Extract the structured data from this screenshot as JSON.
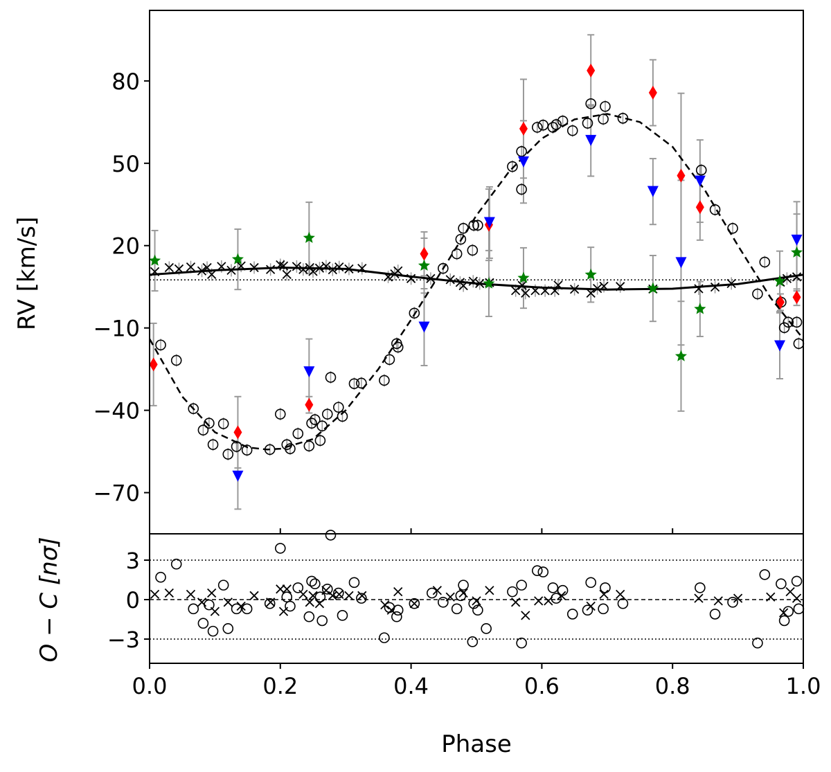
{
  "chart_data": {
    "type": "scatter",
    "title": "",
    "xlabel": "Phase",
    "ylabel_top": "RV [km/s]",
    "ylabel_bottom": "O − C [nσ]",
    "xlim": [
      0.0,
      1.0
    ],
    "ylim_top": [
      -85,
      105.7
    ],
    "ylim_bottom": [
      -4.84,
      5.0
    ],
    "xticks": [
      "0.0",
      "0.2",
      "0.4",
      "0.6",
      "0.8",
      "1.0"
    ],
    "xtick_values": [
      0.0,
      0.2,
      0.4,
      0.6,
      0.8,
      1.0
    ],
    "yticks_top": [
      "80",
      "50",
      "20",
      "−10",
      "−40",
      "−70"
    ],
    "ytick_values_top": [
      80,
      50,
      20,
      -10,
      -40,
      -70
    ],
    "yticks_bottom": [
      "3",
      "0",
      "−3"
    ],
    "ytick_values_bottom": [
      3,
      0,
      -3
    ],
    "systemic_velocity": 7.5,
    "residual_limits": [
      3,
      -3
    ],
    "colors": {
      "primary": "#000000",
      "secondary": "#000000",
      "red": "#ff0000",
      "blue": "#0000ff",
      "green": "#008000",
      "errorbar": "#999999"
    },
    "model_primary": [
      [
        0,
        -14
      ],
      [
        0.05,
        -35
      ],
      [
        0.1,
        -48
      ],
      [
        0.15,
        -53.5
      ],
      [
        0.18,
        -54.3
      ],
      [
        0.2,
        -54
      ],
      [
        0.25,
        -50.5
      ],
      [
        0.3,
        -40
      ],
      [
        0.35,
        -25
      ],
      [
        0.4,
        -7
      ],
      [
        0.45,
        12
      ],
      [
        0.5,
        31
      ],
      [
        0.55,
        47
      ],
      [
        0.6,
        59
      ],
      [
        0.65,
        66
      ],
      [
        0.7,
        68
      ],
      [
        0.75,
        65
      ],
      [
        0.8,
        56
      ],
      [
        0.85,
        40
      ],
      [
        0.9,
        20
      ],
      [
        0.95,
        1
      ],
      [
        1.0,
        -14
      ]
    ],
    "model_secondary": [
      [
        0,
        9.4
      ],
      [
        0.1,
        11
      ],
      [
        0.2,
        12
      ],
      [
        0.3,
        11.5
      ],
      [
        0.4,
        8.7
      ],
      [
        0.5,
        6.2
      ],
      [
        0.6,
        4.7
      ],
      [
        0.7,
        4
      ],
      [
        0.8,
        4.3
      ],
      [
        0.9,
        6
      ],
      [
        1.0,
        9.4
      ]
    ],
    "primary_points": [
      [
        0.017,
        -16.2
      ],
      [
        0.041,
        -21.8
      ],
      [
        0.067,
        -39.4
      ],
      [
        0.082,
        -47.2
      ],
      [
        0.091,
        -44.7
      ],
      [
        0.097,
        -52.5
      ],
      [
        0.113,
        -44.9
      ],
      [
        0.12,
        -56
      ],
      [
        0.133,
        -53.2
      ],
      [
        0.149,
        -54.5
      ],
      [
        0.184,
        -54.3
      ],
      [
        0.2,
        -41.4
      ],
      [
        0.21,
        -52.5
      ],
      [
        0.215,
        -54
      ],
      [
        0.227,
        -48.5
      ],
      [
        0.244,
        -53
      ],
      [
        0.248,
        -44.7
      ],
      [
        0.253,
        -43.4
      ],
      [
        0.261,
        -51
      ],
      [
        0.264,
        -45.7
      ],
      [
        0.272,
        -41.4
      ],
      [
        0.277,
        -28
      ],
      [
        0.289,
        -38.9
      ],
      [
        0.295,
        -42.2
      ],
      [
        0.313,
        -30.3
      ],
      [
        0.324,
        -30.1
      ],
      [
        0.359,
        -29.1
      ],
      [
        0.367,
        -21.5
      ],
      [
        0.378,
        -15.7
      ],
      [
        0.38,
        -17
      ],
      [
        0.405,
        -4.6
      ],
      [
        0.449,
        11.7
      ],
      [
        0.47,
        17
      ],
      [
        0.476,
        22.3
      ],
      [
        0.48,
        26.3
      ],
      [
        0.494,
        18.3
      ],
      [
        0.496,
        27.4
      ],
      [
        0.502,
        27.4
      ],
      [
        0.555,
        48.8
      ],
      [
        0.569,
        40.5
      ],
      [
        0.569,
        54.3
      ],
      [
        0.593,
        63.1
      ],
      [
        0.602,
        63.9
      ],
      [
        0.617,
        63.1
      ],
      [
        0.622,
        64.1
      ],
      [
        0.632,
        65.4
      ],
      [
        0.647,
        61.9
      ],
      [
        0.67,
        64.6
      ],
      [
        0.675,
        71.7
      ],
      [
        0.694,
        66.1
      ],
      [
        0.697,
        70.7
      ],
      [
        0.724,
        66.4
      ],
      [
        0.844,
        47.5
      ],
      [
        0.865,
        33.1
      ],
      [
        0.892,
        26.3
      ],
      [
        0.93,
        2.4
      ],
      [
        0.941,
        14
      ],
      [
        0.966,
        -0.6
      ],
      [
        0.971,
        -9.9
      ],
      [
        0.977,
        -7.9
      ],
      [
        0.99,
        -7.9
      ],
      [
        0.993,
        -15.7
      ]
    ],
    "secondary_points": [
      [
        0.008,
        10.5
      ],
      [
        0.03,
        12
      ],
      [
        0.045,
        11.5
      ],
      [
        0.063,
        12.2
      ],
      [
        0.08,
        10.8
      ],
      [
        0.088,
        12
      ],
      [
        0.095,
        9.5
      ],
      [
        0.11,
        12.4
      ],
      [
        0.125,
        11
      ],
      [
        0.14,
        12.6
      ],
      [
        0.16,
        12
      ],
      [
        0.185,
        11.3
      ],
      [
        0.2,
        13
      ],
      [
        0.205,
        12.6
      ],
      [
        0.21,
        9.5
      ],
      [
        0.225,
        12.4
      ],
      [
        0.235,
        11.3
      ],
      [
        0.245,
        12
      ],
      [
        0.25,
        10.6
      ],
      [
        0.26,
        11.8
      ],
      [
        0.27,
        12.5
      ],
      [
        0.28,
        11.2
      ],
      [
        0.29,
        12.2
      ],
      [
        0.305,
        11.5
      ],
      [
        0.325,
        11.7
      ],
      [
        0.365,
        8.6
      ],
      [
        0.375,
        9.7
      ],
      [
        0.38,
        10.8
      ],
      [
        0.4,
        8
      ],
      [
        0.43,
        8
      ],
      [
        0.46,
        7.6
      ],
      [
        0.475,
        6.6
      ],
      [
        0.48,
        5.4
      ],
      [
        0.495,
        7
      ],
      [
        0.505,
        6.2
      ],
      [
        0.52,
        6.5
      ],
      [
        0.56,
        3.6
      ],
      [
        0.57,
        5.5
      ],
      [
        0.575,
        2.7
      ],
      [
        0.59,
        3.6
      ],
      [
        0.605,
        3.6
      ],
      [
        0.62,
        3.6
      ],
      [
        0.625,
        5.6
      ],
      [
        0.65,
        4.1
      ],
      [
        0.675,
        2.7
      ],
      [
        0.685,
        4.4
      ],
      [
        0.695,
        5.2
      ],
      [
        0.72,
        5.1
      ],
      [
        0.77,
        4.2
      ],
      [
        0.84,
        4.3
      ],
      [
        0.865,
        4.9
      ],
      [
        0.89,
        6.2
      ],
      [
        0.965,
        6.7
      ],
      [
        0.975,
        8
      ],
      [
        0.99,
        8.6
      ]
    ],
    "red_diamonds": [
      [
        0.006,
        -23.3,
        15
      ],
      [
        0.135,
        -48,
        13
      ],
      [
        0.244,
        -38,
        3
      ],
      [
        0.42,
        17,
        8
      ],
      [
        0.519,
        27.6,
        13
      ],
      [
        0.572,
        62.6,
        18
      ],
      [
        0.675,
        83.8,
        13
      ],
      [
        0.77,
        75.7,
        12
      ],
      [
        0.813,
        45.5,
        30
      ],
      [
        0.842,
        34,
        12
      ],
      [
        0.965,
        -0.6,
        3
      ],
      [
        0.99,
        1.2,
        3
      ]
    ],
    "blue_triangles": [
      [
        0.135,
        -64,
        12
      ],
      [
        0.244,
        -26,
        12
      ],
      [
        0.42,
        -9.7,
        14
      ],
      [
        0.52,
        28.4,
        13
      ],
      [
        0.572,
        50.5,
        15
      ],
      [
        0.675,
        58.3,
        13
      ],
      [
        0.77,
        39.7,
        12
      ],
      [
        0.813,
        13.8,
        30
      ],
      [
        0.842,
        43.5,
        15
      ],
      [
        0.964,
        -16.5,
        12
      ],
      [
        0.99,
        22,
        14
      ]
    ],
    "green_stars": [
      [
        0.008,
        14.5,
        11
      ],
      [
        0.135,
        15,
        11
      ],
      [
        0.244,
        22.8,
        13
      ],
      [
        0.42,
        12.7,
        10
      ],
      [
        0.519,
        6.2,
        12
      ],
      [
        0.572,
        8.2,
        11
      ],
      [
        0.675,
        9.4,
        10
      ],
      [
        0.77,
        4.4,
        12
      ],
      [
        0.813,
        -20.3,
        20
      ],
      [
        0.842,
        -3.1,
        10
      ],
      [
        0.964,
        7,
        11
      ],
      [
        0.99,
        17.5,
        14
      ]
    ],
    "residuals_primary": [
      [
        0.017,
        1.7
      ],
      [
        0.041,
        2.7
      ],
      [
        0.067,
        -0.7
      ],
      [
        0.082,
        -1.8
      ],
      [
        0.091,
        -0.4
      ],
      [
        0.097,
        -2.4
      ],
      [
        0.113,
        1.1
      ],
      [
        0.12,
        -2.2
      ],
      [
        0.133,
        -0.7
      ],
      [
        0.149,
        -0.7
      ],
      [
        0.184,
        -0.3
      ],
      [
        0.2,
        3.9
      ],
      [
        0.21,
        0.2
      ],
      [
        0.215,
        -0.5
      ],
      [
        0.227,
        0.9
      ],
      [
        0.244,
        -1.3
      ],
      [
        0.248,
        1.4
      ],
      [
        0.253,
        1.2
      ],
      [
        0.261,
        0.2
      ],
      [
        0.264,
        -1.6
      ],
      [
        0.272,
        0.8
      ],
      [
        0.277,
        4.9
      ],
      [
        0.289,
        0.5
      ],
      [
        0.295,
        -1.2
      ],
      [
        0.313,
        1.3
      ],
      [
        0.324,
        0.1
      ],
      [
        0.359,
        -2.9
      ],
      [
        0.367,
        -0.6
      ],
      [
        0.378,
        -1.3
      ],
      [
        0.38,
        -0.8
      ],
      [
        0.405,
        -0.3
      ],
      [
        0.432,
        0.5
      ],
      [
        0.449,
        -0.2
      ],
      [
        0.47,
        -0.7
      ],
      [
        0.476,
        0.3
      ],
      [
        0.48,
        1.1
      ],
      [
        0.494,
        -3.2
      ],
      [
        0.496,
        -0.3
      ],
      [
        0.502,
        -0.8
      ],
      [
        0.515,
        -2.2
      ],
      [
        0.555,
        0.6
      ],
      [
        0.569,
        1.1
      ],
      [
        0.569,
        -3.3
      ],
      [
        0.593,
        2.2
      ],
      [
        0.602,
        2.1
      ],
      [
        0.617,
        0.9
      ],
      [
        0.622,
        0.1
      ],
      [
        0.632,
        0.7
      ],
      [
        0.647,
        -1.1
      ],
      [
        0.67,
        -0.8
      ],
      [
        0.675,
        1.3
      ],
      [
        0.694,
        -0.7
      ],
      [
        0.697,
        0.9
      ],
      [
        0.724,
        -0.3
      ],
      [
        0.842,
        0.9
      ],
      [
        0.865,
        -1.1
      ],
      [
        0.892,
        -0.2
      ],
      [
        0.93,
        -3.3
      ],
      [
        0.941,
        1.9
      ],
      [
        0.966,
        1.2
      ],
      [
        0.971,
        -1.6
      ],
      [
        0.977,
        -0.9
      ],
      [
        0.99,
        1.4
      ],
      [
        0.993,
        -0.7
      ]
    ],
    "residuals_secondary": [
      [
        0.008,
        0.4
      ],
      [
        0.03,
        0.5
      ],
      [
        0.063,
        0.4
      ],
      [
        0.08,
        -0.2
      ],
      [
        0.095,
        0.5
      ],
      [
        0.1,
        -0.9
      ],
      [
        0.12,
        -0.2
      ],
      [
        0.14,
        -0.5
      ],
      [
        0.16,
        0.3
      ],
      [
        0.185,
        -0.2
      ],
      [
        0.2,
        0.8
      ],
      [
        0.205,
        -0.9
      ],
      [
        0.21,
        0.8
      ],
      [
        0.235,
        0.4
      ],
      [
        0.245,
        -0.2
      ],
      [
        0.25,
        0.3
      ],
      [
        0.26,
        -0.3
      ],
      [
        0.27,
        0.7
      ],
      [
        0.28,
        0.3
      ],
      [
        0.29,
        0.4
      ],
      [
        0.305,
        0.3
      ],
      [
        0.325,
        0.3
      ],
      [
        0.36,
        -0.4
      ],
      [
        0.37,
        -0.8
      ],
      [
        0.38,
        0.6
      ],
      [
        0.405,
        -0.3
      ],
      [
        0.44,
        0.7
      ],
      [
        0.46,
        0.2
      ],
      [
        0.48,
        0.5
      ],
      [
        0.5,
        -0.1
      ],
      [
        0.52,
        0.7
      ],
      [
        0.56,
        -0.2
      ],
      [
        0.575,
        -1.2
      ],
      [
        0.595,
        -0.1
      ],
      [
        0.61,
        -0.1
      ],
      [
        0.63,
        0.3
      ],
      [
        0.675,
        -0.5
      ],
      [
        0.695,
        0.4
      ],
      [
        0.72,
        0.4
      ],
      [
        0.84,
        0.1
      ],
      [
        0.87,
        -0.1
      ],
      [
        0.9,
        0.1
      ],
      [
        0.95,
        0.2
      ],
      [
        0.97,
        -1
      ],
      [
        0.98,
        0.6
      ],
      [
        0.99,
        0.1
      ]
    ]
  }
}
